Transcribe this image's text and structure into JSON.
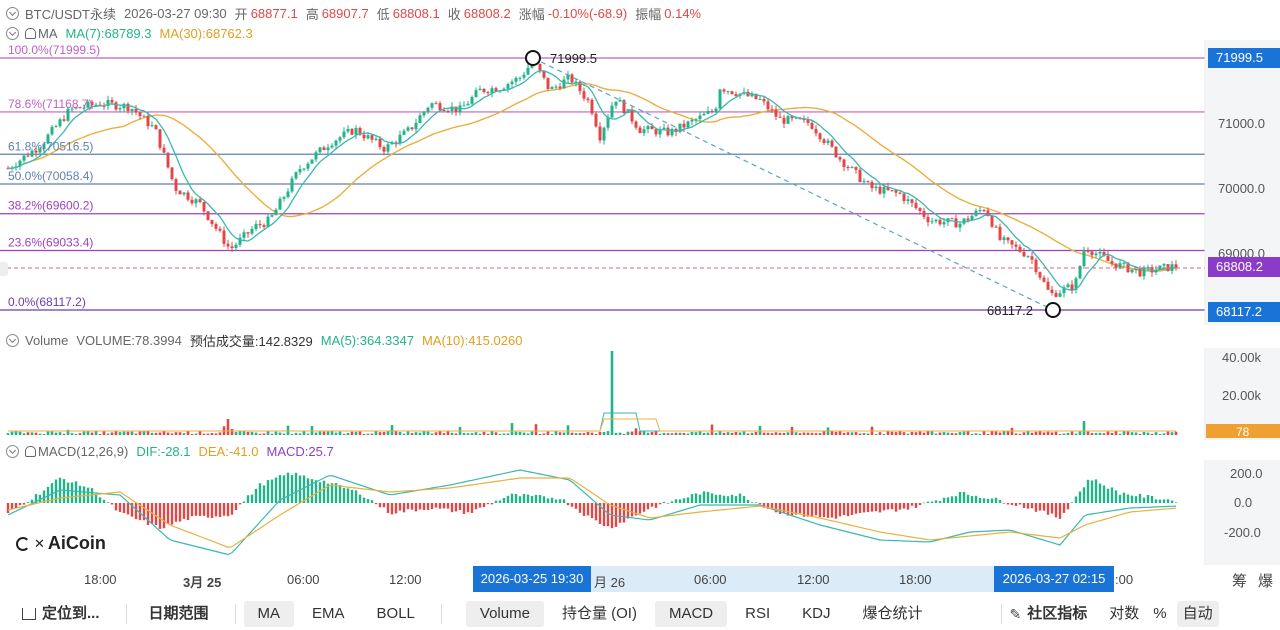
{
  "header": {
    "symbol": "BTC/USDT永续",
    "datetime": "2026-03-27 09:30",
    "open_label": "开",
    "open": "68877.1",
    "high_label": "高",
    "high": "68907.7",
    "low_label": "低",
    "low": "68808.1",
    "close_label": "收",
    "close": "68808.2",
    "change_label": "涨幅",
    "change": "-0.10%(-68.9)",
    "amplitude_label": "振幅",
    "amplitude": "0.14%"
  },
  "ma_header": {
    "name": "MA",
    "ma7": "MA(7):68789.3",
    "ma30": "MA(30):68762.3"
  },
  "fib_levels": [
    {
      "label": "100.0%(71999.5)",
      "price": 71999.5,
      "color": "#c060c0"
    },
    {
      "label": "78.6%(71168.7)",
      "price": 71168.7,
      "color": "#c060c0"
    },
    {
      "label": "61.8%(70516.5)",
      "price": 70516.5,
      "color": "#6080b0"
    },
    {
      "label": "50.0%(70058.4)",
      "price": 70058.4,
      "color": "#6080b0"
    },
    {
      "label": "38.2%(69600.2)",
      "price": 69600.2,
      "color": "#a040c0"
    },
    {
      "label": "23.6%(69033.4)",
      "price": 69033.4,
      "color": "#a040c0"
    },
    {
      "label": "0.0%(68117.2)",
      "price": 68117.2,
      "color": "#6a3cb0"
    }
  ],
  "annotations": {
    "high_point": "71999.5",
    "low_point": "68117.2"
  },
  "price_axis": {
    "ticks": [
      "71000.0",
      "70000.0",
      "69000.0"
    ],
    "tags": {
      "top": "71999.5",
      "current": "68808.2",
      "bottom": "68117.2"
    }
  },
  "volume_header": {
    "name": "Volume",
    "volume": "VOLUME:78.3994",
    "estimate": "预估成交量:142.8329",
    "ma5": "MA(5):364.3347",
    "ma10": "MA(10):415.0260"
  },
  "volume_axis": {
    "ticks": [
      "40.00k",
      "20.00k"
    ],
    "tag": "78"
  },
  "macd_header": {
    "name": "MACD(12,26,9)",
    "dif": "DIF:-28.1",
    "dea": "DEA:-41.0",
    "macd": "MACD:25.7"
  },
  "macd_axis": {
    "ticks": [
      "200.0",
      "0.0",
      "-200.0"
    ]
  },
  "logo": "AiCoin",
  "time_axis": {
    "labels": [
      "18:00",
      "3月 25",
      "06:00",
      "12:00",
      "月 26",
      "06:00",
      "12:00",
      "18:00",
      ":00"
    ],
    "highlight_left": "2026-03-25 19:30",
    "highlight_right": "2026-03-27 02:15",
    "right_icons": [
      "筹",
      "爆"
    ]
  },
  "toolbar": {
    "locate": "定位到...",
    "date_range": "日期范围",
    "ma": "MA",
    "ema": "EMA",
    "boll": "BOLL",
    "volume": "Volume",
    "oi": "持仓量 (OI)",
    "macd": "MACD",
    "rsi": "RSI",
    "kdj": "KDJ",
    "liq": "爆仓统计",
    "community": "社区指标",
    "log": "对数",
    "percent": "%",
    "auto": "自动"
  },
  "colors": {
    "up": "#22b38a",
    "down": "#e04848",
    "ma7": "#3ab8b0",
    "ma30": "#e8b040",
    "tag_blue": "#1a73d6",
    "tag_purple": "#8a3cc8",
    "tag_orange": "#f0a030"
  }
}
